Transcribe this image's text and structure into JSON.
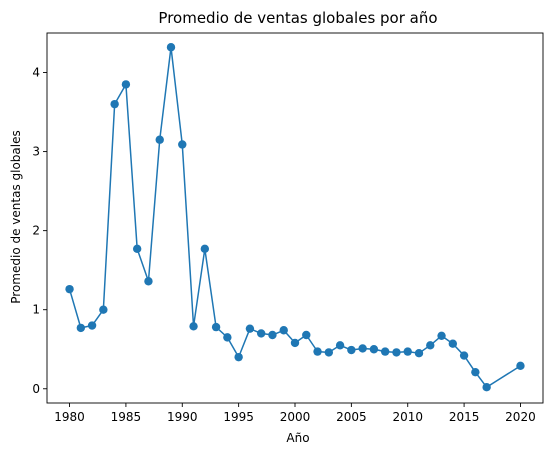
{
  "chart_data": {
    "type": "line",
    "title": "Promedio de ventas globales por año",
    "xlabel": "Año",
    "ylabel": "Promedio de ventas globales",
    "xlim": [
      1978,
      2022
    ],
    "ylim": [
      -0.18,
      4.5
    ],
    "xticks": [
      1980,
      1985,
      1990,
      1995,
      2000,
      2005,
      2010,
      2015,
      2020
    ],
    "yticks": [
      0,
      1,
      2,
      3,
      4
    ],
    "grid": false,
    "marker": "circle",
    "color": "#1f77b4",
    "series": [
      {
        "x": [
          1980,
          1981,
          1982,
          1983,
          1984,
          1985,
          1986,
          1987,
          1988,
          1989,
          1990,
          1991,
          1992,
          1993,
          1994,
          1995,
          1996,
          1997,
          1998,
          1999,
          2000,
          2001,
          2002,
          2003,
          2004,
          2005,
          2006,
          2007,
          2008,
          2009,
          2010,
          2011,
          2012,
          2013,
          2014,
          2015,
          2016,
          2017,
          2020
        ],
        "y": [
          1.26,
          0.77,
          0.8,
          1.0,
          3.6,
          3.85,
          1.77,
          1.36,
          3.15,
          4.32,
          3.09,
          0.79,
          1.77,
          0.78,
          0.65,
          0.4,
          0.76,
          0.7,
          0.68,
          0.74,
          0.58,
          0.68,
          0.47,
          0.46,
          0.55,
          0.49,
          0.51,
          0.5,
          0.47,
          0.46,
          0.47,
          0.45,
          0.55,
          0.67,
          0.57,
          0.42,
          0.21,
          0.02,
          0.29
        ]
      }
    ]
  }
}
